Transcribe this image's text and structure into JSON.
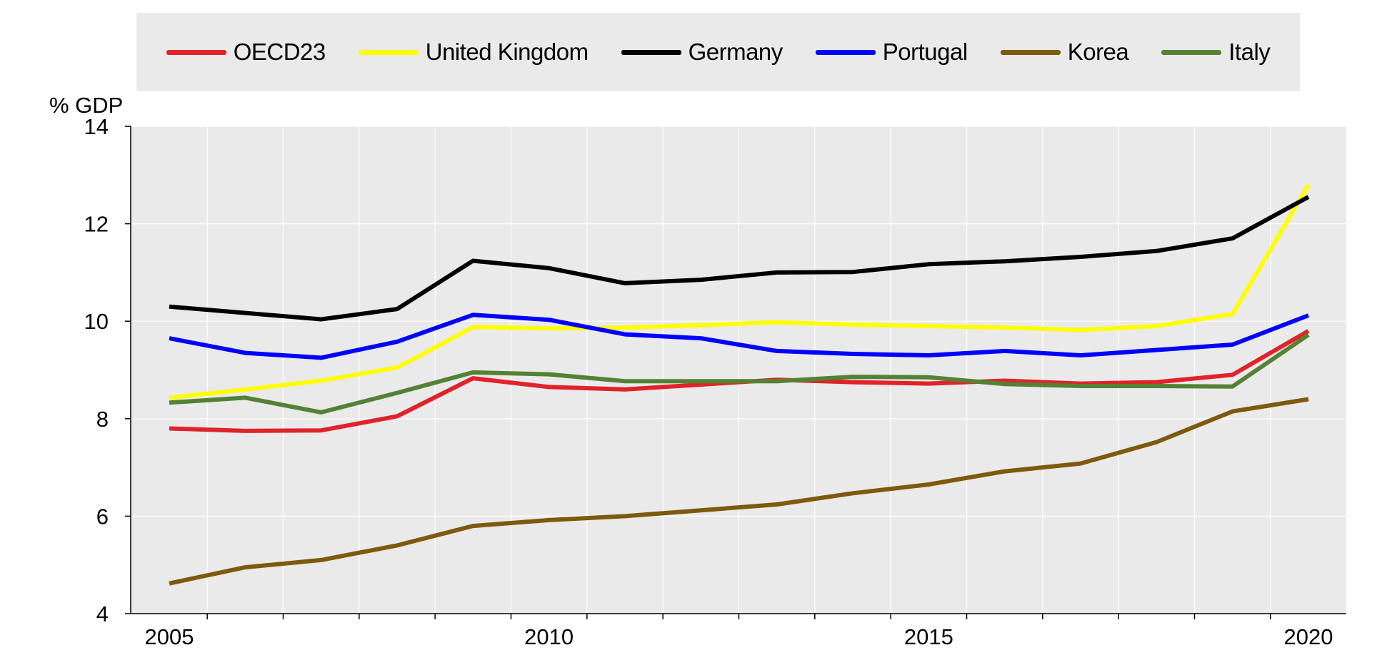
{
  "chart_data": {
    "type": "line",
    "ylabel": "% GDP",
    "xlabel": "",
    "ylim": [
      4,
      14
    ],
    "yticks": [
      4,
      6,
      8,
      10,
      12,
      14
    ],
    "xtick_labels": [
      "2005",
      "2010",
      "2015",
      "2020"
    ],
    "xtick_years": [
      2005,
      2010,
      2015,
      2020
    ],
    "x": [
      2005,
      2006,
      2007,
      2008,
      2009,
      2010,
      2011,
      2012,
      2013,
      2014,
      2015,
      2016,
      2017,
      2018,
      2019,
      2020
    ],
    "legend_position": "top",
    "series": [
      {
        "name": "OECD23",
        "color": "#e0232a",
        "values": [
          7.8,
          7.75,
          7.76,
          8.05,
          8.83,
          8.65,
          8.6,
          8.7,
          8.8,
          8.75,
          8.72,
          8.78,
          8.72,
          8.75,
          8.9,
          9.8
        ]
      },
      {
        "name": "United Kingdom",
        "color": "#ffff00",
        "values": [
          8.43,
          8.6,
          8.78,
          9.05,
          9.88,
          9.85,
          9.87,
          9.92,
          9.98,
          9.93,
          9.9,
          9.87,
          9.82,
          9.9,
          10.15,
          12.8
        ]
      },
      {
        "name": "Germany",
        "color": "#000000",
        "values": [
          10.3,
          10.17,
          10.04,
          10.25,
          11.24,
          11.09,
          10.78,
          10.85,
          11.0,
          11.01,
          11.17,
          11.23,
          11.32,
          11.44,
          11.7,
          12.55
        ]
      },
      {
        "name": "Portugal",
        "color": "#0000ff",
        "values": [
          9.65,
          9.35,
          9.25,
          9.58,
          10.13,
          10.03,
          9.73,
          9.65,
          9.39,
          9.33,
          9.3,
          9.39,
          9.3,
          9.41,
          9.52,
          10.12
        ]
      },
      {
        "name": "Korea",
        "color": "#7d5a0c",
        "values": [
          4.62,
          4.95,
          5.1,
          5.4,
          5.8,
          5.92,
          6.0,
          6.12,
          6.24,
          6.47,
          6.65,
          6.92,
          7.08,
          7.52,
          8.15,
          8.4
        ]
      },
      {
        "name": "Italy",
        "color": "#548235",
        "values": [
          8.33,
          8.43,
          8.13,
          8.53,
          8.95,
          8.91,
          8.77,
          8.77,
          8.77,
          8.86,
          8.85,
          8.71,
          8.67,
          8.67,
          8.66,
          9.72
        ]
      }
    ]
  }
}
